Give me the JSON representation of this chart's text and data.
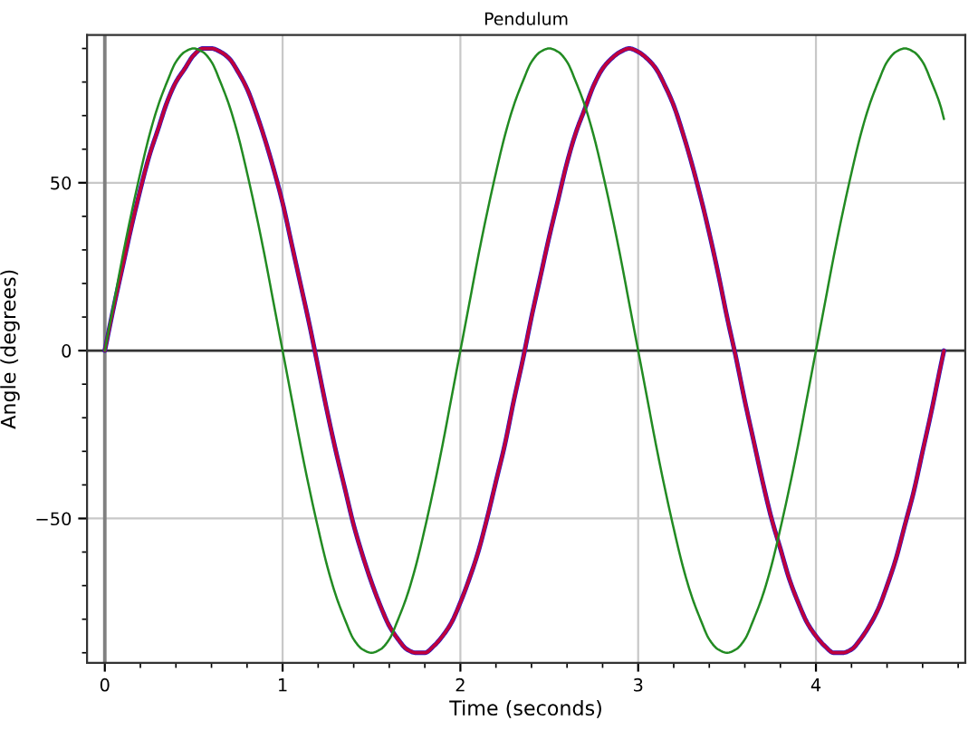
{
  "chart_data": {
    "type": "line",
    "title": "Pendulum",
    "xlabel": "Time (seconds)",
    "ylabel": "Angle (degrees)",
    "x": [
      0,
      0.05,
      0.1,
      0.15,
      0.2,
      0.25,
      0.3,
      0.35,
      0.4,
      0.45,
      0.5,
      0.55,
      0.6,
      0.65,
      0.7,
      0.75,
      0.8,
      0.85,
      0.9,
      0.95,
      1,
      1.05,
      1.1,
      1.15,
      1.2,
      1.25,
      1.3,
      1.35,
      1.4,
      1.45,
      1.5,
      1.55,
      1.6,
      1.65,
      1.7,
      1.75,
      1.8,
      1.85,
      1.9,
      1.95,
      2,
      2.05,
      2.1,
      2.15,
      2.2,
      2.25,
      2.3,
      2.35,
      2.4,
      2.45,
      2.5,
      2.55,
      2.6,
      2.65,
      2.7,
      2.75,
      2.8,
      2.85,
      2.9,
      2.95,
      3,
      3.05,
      3.1,
      3.15,
      3.2,
      3.25,
      3.3,
      3.35,
      3.4,
      3.45,
      3.5,
      3.55,
      3.6,
      3.65,
      3.7,
      3.75,
      3.8,
      3.85,
      3.9,
      3.95,
      4,
      4.05,
      4.1,
      4.15,
      4.2,
      4.25,
      4.3,
      4.35,
      4.4,
      4.45,
      4.5,
      4.55,
      4.6,
      4.65,
      4.7,
      4.72
    ],
    "series": [
      {
        "color": "#1a1ad0",
        "values": [
          0,
          13,
          25,
          37,
          48,
          58,
          66,
          74,
          80,
          84,
          88,
          90,
          90,
          89,
          87,
          83,
          78,
          71,
          63,
          54,
          44,
          32,
          20,
          8,
          -5,
          -18,
          -30,
          -41,
          -52,
          -61,
          -69,
          -76,
          -82,
          -86,
          -89,
          -90,
          -90,
          -88,
          -85,
          -81,
          -75,
          -68,
          -60,
          -50,
          -39,
          -28,
          -15,
          -3,
          10,
          22,
          34,
          45,
          56,
          65,
          72,
          79,
          84,
          87,
          89,
          90,
          89,
          87,
          84,
          79,
          73,
          65,
          56,
          46,
          35,
          23,
          10,
          -2,
          -15,
          -27,
          -39,
          -50,
          -59,
          -68,
          -75,
          -81,
          -85,
          -88,
          -90,
          -90,
          -89,
          -86,
          -82,
          -77,
          -70,
          -62,
          -52,
          -42,
          -30,
          -18,
          -5,
          0
        ]
      },
      {
        "color": "#c0003c",
        "values": [
          0,
          13,
          25,
          37,
          48,
          58,
          66,
          74,
          80,
          84,
          88,
          90,
          90,
          89,
          87,
          83,
          78,
          71,
          63,
          54,
          44,
          32,
          20,
          8,
          -5,
          -18,
          -30,
          -41,
          -52,
          -61,
          -69,
          -76,
          -82,
          -86,
          -89,
          -90,
          -90,
          -88,
          -85,
          -81,
          -75,
          -68,
          -60,
          -50,
          -39,
          -28,
          -15,
          -3,
          10,
          22,
          34,
          45,
          56,
          65,
          72,
          79,
          84,
          87,
          89,
          90,
          89,
          87,
          84,
          79,
          73,
          65,
          56,
          46,
          35,
          23,
          10,
          -2,
          -15,
          -27,
          -39,
          -50,
          -59,
          -68,
          -75,
          -81,
          -85,
          -88,
          -90,
          -90,
          -89,
          -86,
          -82,
          -77,
          -70,
          -62,
          -52,
          -42,
          -30,
          -18,
          -5,
          0
        ]
      },
      {
        "color": "#228b22",
        "values": [
          0,
          14,
          28,
          41,
          53,
          64,
          73,
          80,
          86,
          89,
          90,
          89,
          86,
          80,
          73,
          64,
          53,
          41,
          28,
          14,
          0,
          -14,
          -28,
          -41,
          -53,
          -64,
          -73,
          -80,
          -86,
          -89,
          -90,
          -89,
          -86,
          -80,
          -73,
          -64,
          -53,
          -41,
          -28,
          -14,
          0,
          14,
          28,
          41,
          53,
          64,
          73,
          80,
          86,
          89,
          90,
          89,
          86,
          80,
          73,
          64,
          53,
          41,
          28,
          14,
          0,
          -14,
          -28,
          -41,
          -53,
          -64,
          -73,
          -80,
          -86,
          -89,
          -90,
          -89,
          -86,
          -80,
          -73,
          -64,
          -53,
          -41,
          -28,
          -14,
          0,
          14,
          28,
          41,
          53,
          64,
          73,
          80,
          86,
          89,
          90,
          89,
          86,
          80,
          73,
          69
        ]
      }
    ],
    "xlim": [
      -0.1,
      4.84
    ],
    "xticks": [
      0,
      1,
      2,
      3,
      4
    ],
    "ylim": [
      -93,
      94
    ],
    "yticks": [
      {
        "value": -50,
        "label": "−50"
      },
      0,
      50
    ],
    "grid": true,
    "ref_lines": [
      {
        "axis": "x",
        "value": 0,
        "color": "#808080"
      },
      {
        "axis": "y",
        "value": 0,
        "color": "#333333"
      }
    ]
  }
}
